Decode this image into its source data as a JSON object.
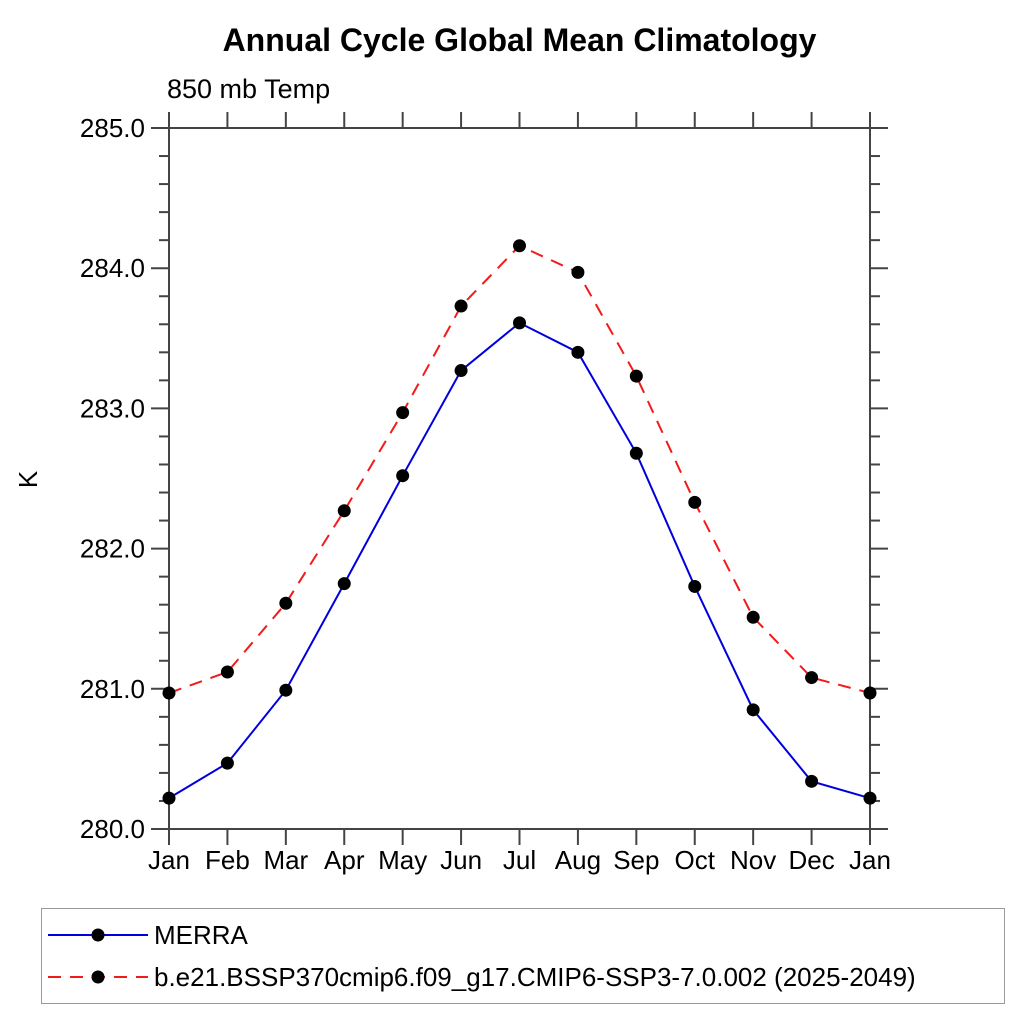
{
  "chart_data": {
    "type": "line",
    "title": "Annual Cycle Global Mean Climatology",
    "subtitle": "850 mb Temp",
    "ylabel": "K",
    "xlabel": "",
    "ylim": [
      280.0,
      285.0
    ],
    "ytick_step": 1.0,
    "ytick_minor_step": 0.2,
    "ytick_labels": [
      "280.0",
      "281.0",
      "282.0",
      "283.0",
      "284.0",
      "285.0"
    ],
    "categories": [
      "Jan",
      "Feb",
      "Mar",
      "Apr",
      "May",
      "Jun",
      "Jul",
      "Aug",
      "Sep",
      "Oct",
      "Nov",
      "Dec",
      "Jan"
    ],
    "grid": false,
    "legend_position": "bottom",
    "axis_color": "#444444",
    "text_color": "#000000",
    "series": [
      {
        "name": "MERRA",
        "color": "#0000dd",
        "style": "solid",
        "marker": "filled-circle",
        "marker_color": "#000000",
        "values": [
          280.22,
          280.47,
          280.99,
          281.75,
          282.52,
          283.27,
          283.61,
          283.4,
          282.68,
          281.73,
          280.85,
          280.34,
          280.22
        ]
      },
      {
        "name": "b.e21.BSSP370cmip6.f09_g17.CMIP6-SSP3-7.0.002 (2025-2049)",
        "color": "#f31a1a",
        "style": "dashed",
        "marker": "filled-circle",
        "marker_color": "#000000",
        "values": [
          280.97,
          281.12,
          281.61,
          282.27,
          282.97,
          283.73,
          284.16,
          283.97,
          283.23,
          282.33,
          281.51,
          281.08,
          280.97
        ]
      }
    ]
  }
}
